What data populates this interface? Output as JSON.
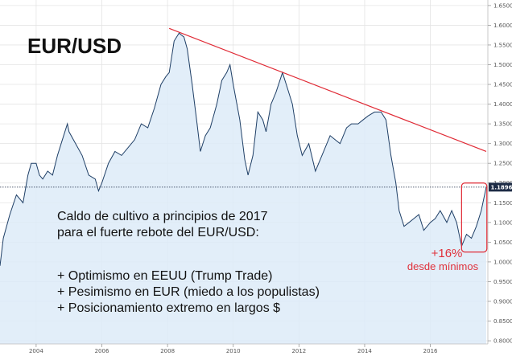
{
  "chart_data": {
    "type": "area",
    "title": "EUR/USD",
    "x_tick_labels": [
      "2004",
      "2006",
      "2008",
      "2010",
      "2012",
      "2014",
      "2016"
    ],
    "y_tick_labels": [
      "1.6500",
      "1.6000",
      "1.5500",
      "1.5000",
      "1.4500",
      "1.4000",
      "1.3500",
      "1.3000",
      "1.2500",
      "1.2000",
      "1.1500",
      "1.1000",
      "1.0500",
      "1.0000",
      "0.9500",
      "0.9000",
      "0.8500",
      "0.8000"
    ],
    "ylim": [
      0.8,
      1.65
    ],
    "xlim": [
      2002.9,
      2017.75
    ],
    "grid": true,
    "series": [
      {
        "x": [
          2002.9,
          2003.0,
          2003.2,
          2003.4,
          2003.6,
          2003.75,
          2003.85,
          2004.0,
          2004.1,
          2004.2,
          2004.35,
          2004.5,
          2004.65,
          2004.8,
          2004.95,
          2005.0,
          2005.2,
          2005.4,
          2005.6,
          2005.8,
          2005.9,
          2006.0,
          2006.2,
          2006.4,
          2006.6,
          2006.8,
          2007.0,
          2007.2,
          2007.4,
          2007.6,
          2007.8,
          2007.95,
          2008.05,
          2008.2,
          2008.35,
          2008.5,
          2008.6,
          2008.75,
          2008.9,
          2009.0,
          2009.15,
          2009.3,
          2009.5,
          2009.65,
          2009.8,
          2009.9,
          2010.0,
          2010.2,
          2010.35,
          2010.45,
          2010.6,
          2010.75,
          2010.9,
          2011.0,
          2011.15,
          2011.3,
          2011.5,
          2011.65,
          2011.8,
          2011.95,
          2012.1,
          2012.3,
          2012.5,
          2012.65,
          2012.8,
          2012.95,
          2013.1,
          2013.25,
          2013.45,
          2013.6,
          2013.8,
          2013.95,
          2014.1,
          2014.3,
          2014.5,
          2014.65,
          2014.8,
          2014.95,
          2015.05,
          2015.2,
          2015.35,
          2015.5,
          2015.65,
          2015.8,
          2016.0,
          2016.15,
          2016.3,
          2016.5,
          2016.65,
          2016.8,
          2016.95,
          2017.1,
          2017.25,
          2017.4,
          2017.55,
          2017.7
        ],
        "y": [
          0.99,
          1.06,
          1.12,
          1.17,
          1.15,
          1.22,
          1.25,
          1.25,
          1.22,
          1.21,
          1.23,
          1.22,
          1.27,
          1.31,
          1.35,
          1.33,
          1.3,
          1.27,
          1.22,
          1.21,
          1.18,
          1.2,
          1.25,
          1.28,
          1.27,
          1.29,
          1.31,
          1.35,
          1.34,
          1.39,
          1.45,
          1.47,
          1.48,
          1.56,
          1.58,
          1.57,
          1.54,
          1.45,
          1.35,
          1.28,
          1.32,
          1.34,
          1.4,
          1.46,
          1.48,
          1.5,
          1.45,
          1.36,
          1.26,
          1.22,
          1.27,
          1.38,
          1.36,
          1.33,
          1.4,
          1.43,
          1.48,
          1.44,
          1.4,
          1.32,
          1.27,
          1.3,
          1.23,
          1.26,
          1.29,
          1.32,
          1.31,
          1.3,
          1.34,
          1.35,
          1.35,
          1.36,
          1.37,
          1.38,
          1.38,
          1.36,
          1.27,
          1.2,
          1.13,
          1.09,
          1.1,
          1.11,
          1.12,
          1.08,
          1.1,
          1.11,
          1.13,
          1.1,
          1.13,
          1.1,
          1.04,
          1.07,
          1.06,
          1.09,
          1.13,
          1.19
        ]
      }
    ],
    "current_value": "1.1896",
    "trendline": {
      "x": [
        2008.05,
        2017.7
      ],
      "y": [
        1.592,
        1.28
      ]
    },
    "annotations": {
      "note_lines": [
        "Caldo de cultivo a principios de 2017",
        "para el fuerte rebote del EUR/USD:",
        "",
        "+ Optimismo en EEUU (Trump Trade)",
        "+ Pesimismo en EUR (miedo a los populistas)",
        "+ Posicionamiento extremo en largos $"
      ],
      "gain_percent": "+16%",
      "gain_caption": "desde mínimos"
    },
    "colors": {
      "line": "#1f3f66",
      "area": "#ddebf8",
      "trendline": "#e02a35",
      "highlight_box": "#e02a35",
      "badge": "#1d2b45",
      "grid": "#e4e4e4"
    }
  }
}
